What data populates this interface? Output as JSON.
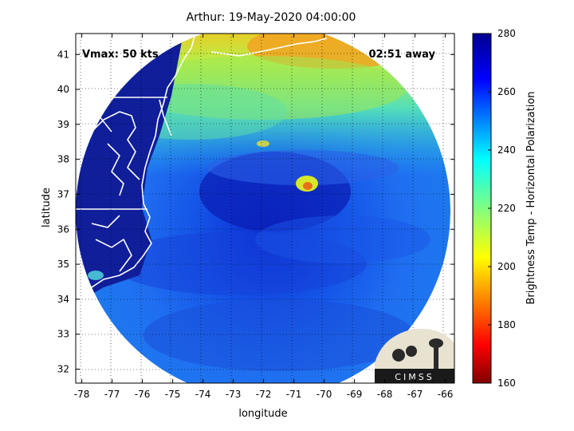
{
  "figure": {
    "title": "Arthur: 19-May-2020 04:00:00",
    "xlabel": "longitude",
    "ylabel": "latitude",
    "annotation_left": "Vmax: 50 kts",
    "annotation_right": "02:51 away",
    "colorbar_label": "Brightness Temp - Horizontal Polarization",
    "logo_text": "CIMSS"
  },
  "chart_data": {
    "type": "heatmap",
    "title": "Arthur: 19-May-2020 04:00:00",
    "xlabel": "longitude",
    "ylabel": "latitude",
    "xlim": [
      -78.2,
      -65.7
    ],
    "ylim": [
      31.6,
      41.6
    ],
    "xticks": [
      -78,
      -77,
      -76,
      -75,
      -74,
      -73,
      -72,
      -71,
      -70,
      -69,
      -68,
      -67,
      -66
    ],
    "yticks": [
      32,
      33,
      34,
      35,
      36,
      37,
      38,
      39,
      40,
      41
    ],
    "grid": true,
    "colorbar": {
      "label": "Brightness Temp - Horizontal Polarization",
      "range": [
        160,
        280
      ],
      "ticks": [
        160,
        180,
        200,
        220,
        240,
        260,
        280
      ],
      "colormap": "jet"
    },
    "swath_center": {
      "lon": -71.8,
      "lat": 36.6
    },
    "storm_center": {
      "lon": -70.9,
      "lat": 37.1
    },
    "vmax_kts": 50
  }
}
